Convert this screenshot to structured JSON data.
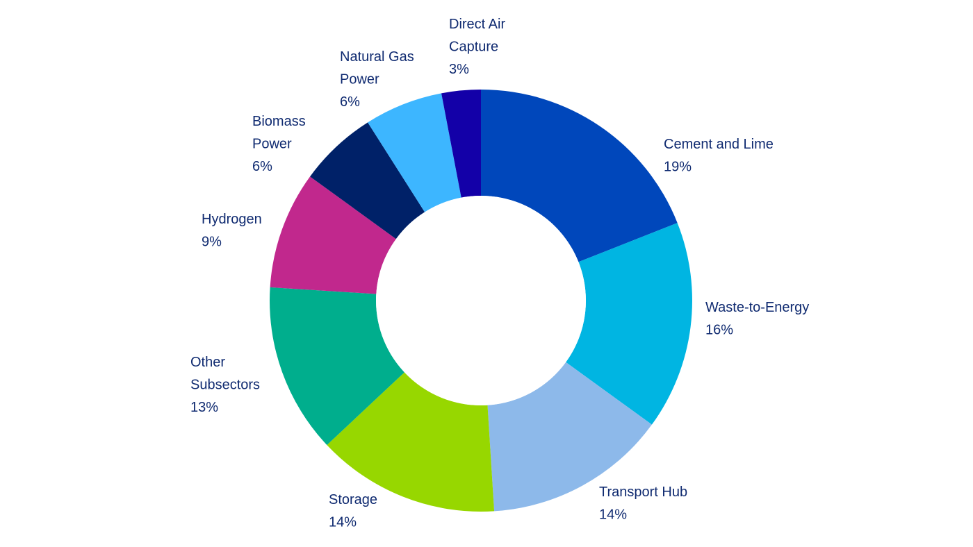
{
  "chart_data": {
    "type": "pie",
    "donut": true,
    "title": "",
    "legend": "none",
    "slices": [
      {
        "label": "Cement and Lime",
        "lines": [
          "Cement and Lime"
        ],
        "value": 19,
        "value_label": "19%",
        "color": "#0047BB"
      },
      {
        "label": "Waste-to-Energy",
        "lines": [
          "Waste-to-Energy"
        ],
        "value": 16,
        "value_label": "16%",
        "color": "#00B5E2"
      },
      {
        "label": "Transport Hub",
        "lines": [
          "Transport Hub"
        ],
        "value": 14,
        "value_label": "14%",
        "color": "#8DB9EA"
      },
      {
        "label": "Storage",
        "lines": [
          "Storage"
        ],
        "value": 14,
        "value_label": "14%",
        "color": "#97D700"
      },
      {
        "label": "Other Subsectors",
        "lines": [
          "Other",
          "Subsectors"
        ],
        "value": 13,
        "value_label": "13%",
        "color": "#00AE8D"
      },
      {
        "label": "Hydrogen",
        "lines": [
          "Hydrogen"
        ],
        "value": 9,
        "value_label": "9%",
        "color": "#C1288D"
      },
      {
        "label": "Biomass Power",
        "lines": [
          "Biomass",
          "Power"
        ],
        "value": 6,
        "value_label": "6%",
        "color": "#002168"
      },
      {
        "label": "Natural Gas Power",
        "lines": [
          "Natural Gas",
          "Power"
        ],
        "value": 6,
        "value_label": "6%",
        "color": "#3DB6FF"
      },
      {
        "label": "Direct Air Capture",
        "lines": [
          "Direct Air",
          "Capture"
        ],
        "value": 3,
        "value_label": "3%",
        "color": "#1300A8"
      }
    ]
  }
}
